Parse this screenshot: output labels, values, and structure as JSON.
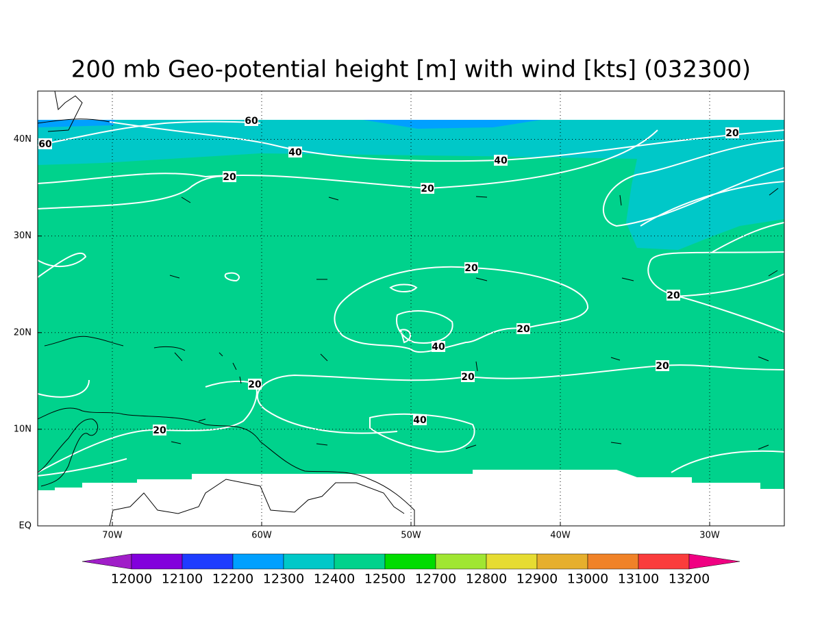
{
  "title": "200 mb Geo-potential height [m] with wind [kts] (032300)",
  "map": {
    "lon_range": [
      -75,
      -25
    ],
    "lat_range": [
      0,
      45
    ],
    "xticks": [
      {
        "value": -70,
        "label": "70W"
      },
      {
        "value": -60,
        "label": "60W"
      },
      {
        "value": -50,
        "label": "50W"
      },
      {
        "value": -40,
        "label": "40W"
      },
      {
        "value": -30,
        "label": "30W"
      }
    ],
    "yticks": [
      {
        "value": 0,
        "label": "EQ"
      },
      {
        "value": 10,
        "label": "10N"
      },
      {
        "value": 20,
        "label": "20N"
      },
      {
        "value": 30,
        "label": "30N"
      },
      {
        "value": 40,
        "label": "40N"
      }
    ],
    "contour_labels": [
      "60",
      "60",
      "40",
      "40",
      "20",
      "20",
      "20",
      "20",
      "20",
      "20",
      "40",
      "20",
      "20",
      "20",
      "40",
      "20"
    ]
  },
  "colorbar": {
    "levels": [
      12000,
      12100,
      12200,
      12300,
      12400,
      12500,
      12700,
      12800,
      12900,
      13000,
      13100,
      13200
    ],
    "colors": [
      "#a01ec8",
      "#8200dc",
      "#1e3cff",
      "#00a0ff",
      "#00c8c8",
      "#00d28c",
      "#00dc00",
      "#a0e632",
      "#e6dc32",
      "#e6af2d",
      "#f08228",
      "#fa3c3c",
      "#f00082"
    ]
  }
}
